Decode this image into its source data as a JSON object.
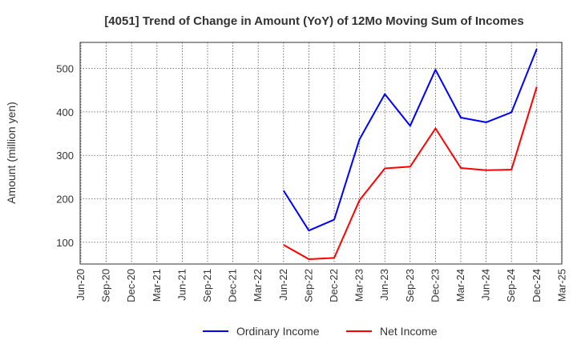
{
  "chart_data": {
    "type": "line",
    "title": "[4051]  Trend of Change in Amount (YoY) of 12Mo Moving Sum of Incomes",
    "xlabel": "",
    "ylabel": "Amount (million yen)",
    "categories": [
      "Jun-20",
      "Sep-20",
      "Dec-20",
      "Mar-21",
      "Jun-21",
      "Sep-21",
      "Dec-21",
      "Mar-22",
      "Jun-22",
      "Sep-22",
      "Dec-22",
      "Mar-23",
      "Jun-23",
      "Sep-23",
      "Dec-23",
      "Mar-24",
      "Jun-24",
      "Sep-24",
      "Dec-24",
      "Mar-25"
    ],
    "ylim": [
      50,
      560
    ],
    "yticks": [
      100,
      200,
      300,
      400,
      500
    ],
    "grid": true,
    "legend_position": "bottom-center",
    "series": [
      {
        "name": "Ordinary Income",
        "color": "#0000ff",
        "values": [
          null,
          null,
          null,
          null,
          null,
          null,
          null,
          null,
          219,
          127,
          152,
          337,
          441,
          368,
          497,
          387,
          376,
          399,
          545,
          null
        ]
      },
      {
        "name": "Net Income",
        "color": "#ff0000",
        "values": [
          null,
          null,
          null,
          null,
          null,
          null,
          null,
          null,
          94,
          61,
          64,
          197,
          270,
          274,
          362,
          271,
          266,
          267,
          458,
          null
        ]
      }
    ]
  }
}
